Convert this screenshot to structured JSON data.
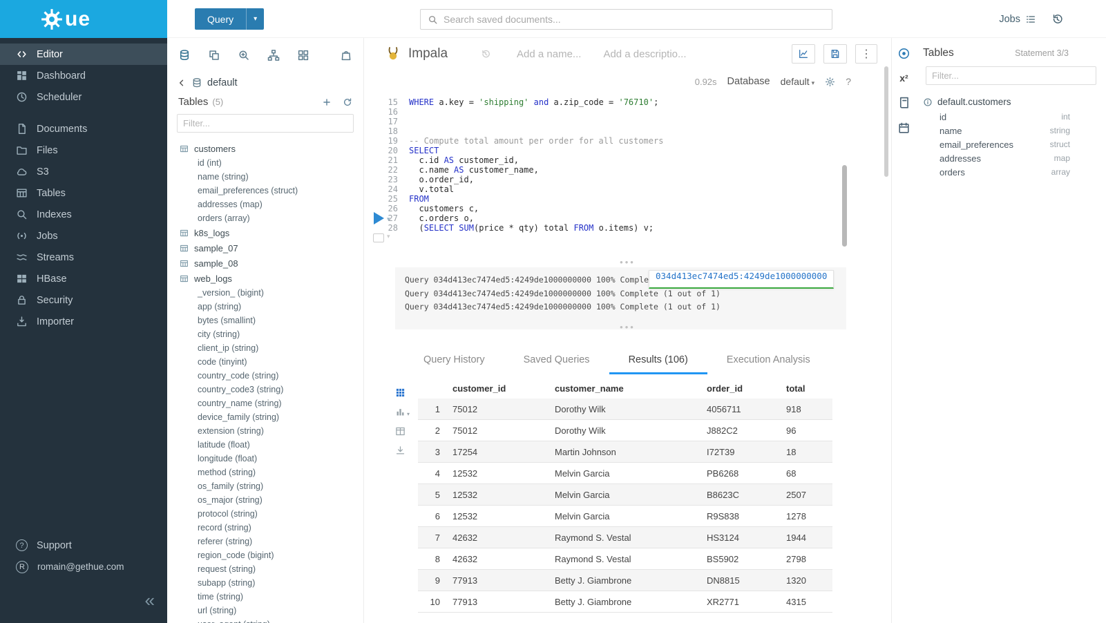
{
  "colors": {
    "brand": "#1ba8e0",
    "sidebar_bg": "#24323d",
    "accent": "#2196f3",
    "button_blue": "#2a7cb0",
    "keyword": "#2431c8",
    "string": "#2e7d32",
    "comment": "#9b9b9b",
    "link": "#2574c9",
    "success": "#3ba93f"
  },
  "topbar": {
    "query_button": "Query",
    "search_placeholder": "Search saved documents...",
    "jobs_label": "Jobs"
  },
  "sidebar": {
    "logo_text": "ue",
    "items": [
      {
        "label": "Editor",
        "icon": "code",
        "active": true
      },
      {
        "label": "Dashboard",
        "icon": "dashboard"
      },
      {
        "label": "Scheduler",
        "icon": "clock"
      },
      {
        "label": "Documents",
        "icon": "document"
      },
      {
        "label": "Files",
        "icon": "folder"
      },
      {
        "label": "S3",
        "icon": "cloud"
      },
      {
        "label": "Tables",
        "icon": "table"
      },
      {
        "label": "Indexes",
        "icon": "search"
      },
      {
        "label": "Jobs",
        "icon": "broadcast"
      },
      {
        "label": "Streams",
        "icon": "stream"
      },
      {
        "label": "HBase",
        "icon": "blocks"
      },
      {
        "label": "Security",
        "icon": "lock"
      },
      {
        "label": "Importer",
        "icon": "import"
      }
    ],
    "support_label": "Support",
    "user_email": "romain@gethue.com",
    "user_initial": "R",
    "collapse_glyph": "«"
  },
  "left_assist": {
    "breadcrumb_db": "default",
    "header": "Tables",
    "count": "(5)",
    "filter_placeholder": "Filter...",
    "tables": [
      {
        "name": "customers",
        "columns": [
          "id (int)",
          "name (string)",
          "email_preferences (struct)",
          "addresses (map)",
          "orders (array)"
        ]
      },
      {
        "name": "k8s_logs",
        "columns": []
      },
      {
        "name": "sample_07",
        "columns": []
      },
      {
        "name": "sample_08",
        "columns": []
      },
      {
        "name": "web_logs",
        "columns": [
          "_version_ (bigint)",
          "app (string)",
          "bytes (smallint)",
          "city (string)",
          "client_ip (string)",
          "code (tinyint)",
          "country_code (string)",
          "country_code3 (string)",
          "country_name (string)",
          "device_family (string)",
          "extension (string)",
          "latitude (float)",
          "longitude (float)",
          "method (string)",
          "os_family (string)",
          "os_major (string)",
          "protocol (string)",
          "record (string)",
          "referer (string)",
          "region_code (bigint)",
          "request (string)",
          "subapp (string)",
          "time (string)",
          "url (string)",
          "user_agent (string)"
        ]
      }
    ]
  },
  "editor": {
    "engine": "Impala",
    "name_placeholder": "Add a name...",
    "description_placeholder": "Add a descriptio...",
    "duration": "0.92s",
    "database_label": "Database",
    "database_value": "default",
    "lines": [
      {
        "n": 15,
        "tokens": [
          [
            "k",
            "WHERE"
          ],
          [
            "p",
            " a.key = "
          ],
          [
            "s",
            "'shipping'"
          ],
          [
            "p",
            " "
          ],
          [
            "k",
            "and"
          ],
          [
            "p",
            " a.zip_code = "
          ],
          [
            "s",
            "'76710'"
          ],
          [
            "p",
            ";"
          ]
        ]
      },
      {
        "n": 16,
        "tokens": []
      },
      {
        "n": 17,
        "tokens": []
      },
      {
        "n": 18,
        "tokens": []
      },
      {
        "n": 19,
        "tokens": [
          [
            "c",
            "-- Compute total amount per order for all customers"
          ]
        ]
      },
      {
        "n": 20,
        "tokens": [
          [
            "k",
            "SELECT"
          ]
        ]
      },
      {
        "n": 21,
        "tokens": [
          [
            "p",
            "  c.id "
          ],
          [
            "k",
            "AS"
          ],
          [
            "p",
            " customer_id,"
          ]
        ]
      },
      {
        "n": 22,
        "tokens": [
          [
            "p",
            "  c.name "
          ],
          [
            "k",
            "AS"
          ],
          [
            "p",
            " customer_name,"
          ]
        ]
      },
      {
        "n": 23,
        "tokens": [
          [
            "p",
            "  o.order_id,"
          ]
        ]
      },
      {
        "n": 24,
        "tokens": [
          [
            "p",
            "  v.total"
          ]
        ]
      },
      {
        "n": 25,
        "tokens": [
          [
            "k",
            "FROM"
          ]
        ]
      },
      {
        "n": 26,
        "tokens": [
          [
            "p",
            "  customers c,"
          ]
        ]
      },
      {
        "n": 27,
        "tokens": [
          [
            "p",
            "  c.orders o,"
          ]
        ]
      },
      {
        "n": 28,
        "tokens": [
          [
            "p",
            "  ("
          ],
          [
            "k",
            "SELECT"
          ],
          [
            "p",
            " "
          ],
          [
            "k",
            "SUM"
          ],
          [
            "p",
            "(price * qty) total "
          ],
          [
            "k",
            "FROM"
          ],
          [
            "p",
            " o.items) v;"
          ]
        ]
      }
    ]
  },
  "logs": {
    "lines": [
      "Query 034d413ec7474ed5:4249de1000000000 100% Complete (1 out of 1)",
      "Query 034d413ec7474ed5:4249de1000000000 100% Complete (1 out of 1)",
      "Query 034d413ec7474ed5:4249de1000000000 100% Complete (1 out of 1)"
    ],
    "selection": "034d413ec7474ed5:4249de1000000000"
  },
  "tabs": [
    {
      "label": "Query History"
    },
    {
      "label": "Saved Queries"
    },
    {
      "label": "Results (106)",
      "active": true
    },
    {
      "label": "Execution Analysis"
    }
  ],
  "results": {
    "columns": [
      "customer_id",
      "customer_name",
      "order_id",
      "total"
    ],
    "rows": [
      [
        "1",
        "75012",
        "Dorothy Wilk",
        "4056711",
        "918"
      ],
      [
        "2",
        "75012",
        "Dorothy Wilk",
        "J882C2",
        "96"
      ],
      [
        "3",
        "17254",
        "Martin Johnson",
        "I72T39",
        "18"
      ],
      [
        "4",
        "12532",
        "Melvin Garcia",
        "PB6268",
        "68"
      ],
      [
        "5",
        "12532",
        "Melvin Garcia",
        "B8623C",
        "2507"
      ],
      [
        "6",
        "12532",
        "Melvin Garcia",
        "R9S838",
        "1278"
      ],
      [
        "7",
        "42632",
        "Raymond S. Vestal",
        "HS3124",
        "1944"
      ],
      [
        "8",
        "42632",
        "Raymond S. Vestal",
        "BS5902",
        "2798"
      ],
      [
        "9",
        "77913",
        "Betty J. Giambrone",
        "DN8815",
        "1320"
      ],
      [
        "10",
        "77913",
        "Betty J. Giambrone",
        "XR2771",
        "4315"
      ]
    ]
  },
  "right_assist": {
    "header": "Tables",
    "statement": "Statement 3/3",
    "filter_placeholder": "Filter...",
    "table": "default.customers",
    "columns": [
      {
        "name": "id",
        "type": "int"
      },
      {
        "name": "name",
        "type": "string"
      },
      {
        "name": "email_preferences",
        "type": "struct"
      },
      {
        "name": "addresses",
        "type": "map"
      },
      {
        "name": "orders",
        "type": "array"
      }
    ]
  }
}
